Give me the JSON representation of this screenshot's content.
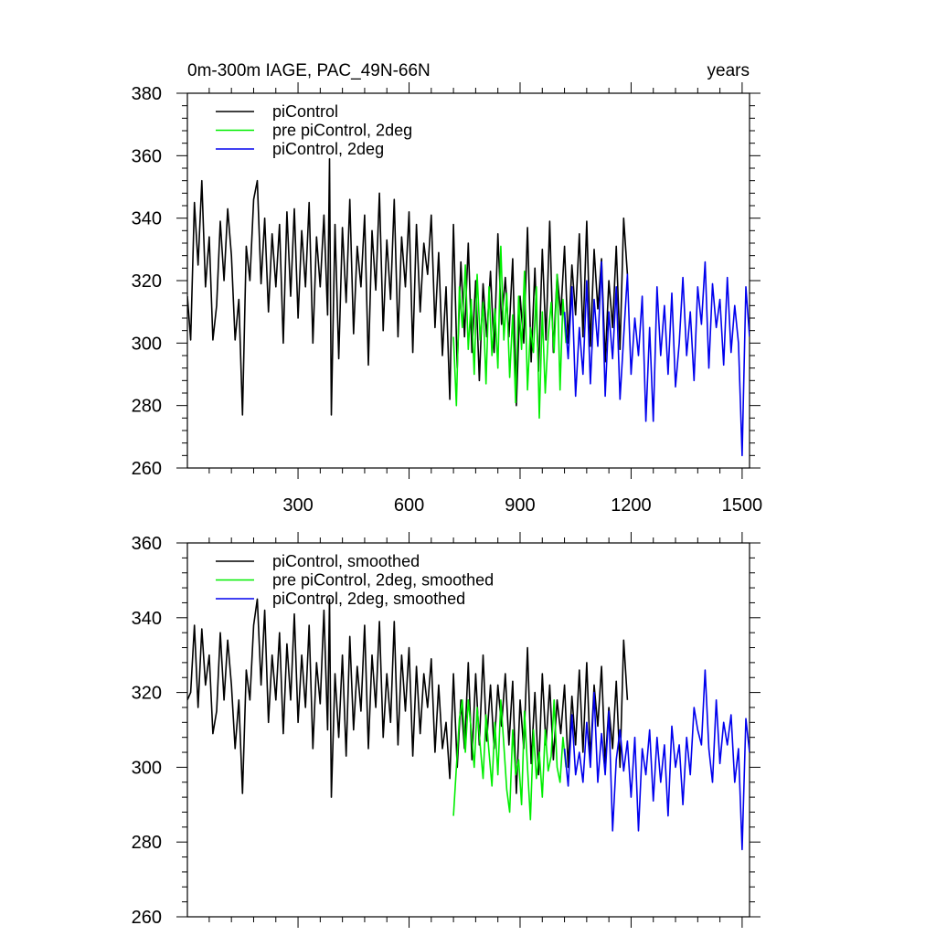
{
  "chart_data": [
    {
      "type": "line",
      "title": "0m-300m IAGE, PAC_49N-66N",
      "units": "years",
      "xlabel": "",
      "ylabel": "",
      "xlim": [
        1,
        1520
      ],
      "ylim": [
        260,
        380
      ],
      "xticks": [
        300,
        600,
        900,
        1200,
        1500
      ],
      "yticks": [
        260,
        280,
        300,
        320,
        340,
        360,
        380
      ],
      "legend_position": "top-left",
      "grid": false,
      "series": [
        {
          "name": "piControl",
          "color": "#000000",
          "x": [
            1,
            10,
            20,
            30,
            40,
            50,
            60,
            70,
            80,
            90,
            100,
            110,
            120,
            130,
            140,
            150,
            160,
            170,
            180,
            190,
            200,
            210,
            220,
            230,
            240,
            250,
            260,
            270,
            280,
            290,
            300,
            310,
            320,
            330,
            340,
            350,
            360,
            370,
            380,
            385,
            390,
            400,
            410,
            420,
            430,
            440,
            450,
            460,
            470,
            480,
            490,
            500,
            510,
            520,
            530,
            540,
            550,
            560,
            570,
            580,
            590,
            600,
            610,
            620,
            630,
            640,
            650,
            660,
            670,
            680,
            690,
            700,
            710,
            720,
            730,
            740,
            750,
            760,
            770,
            780,
            790,
            800,
            810,
            820,
            830,
            840,
            850,
            860,
            870,
            880,
            890,
            900,
            910,
            920,
            930,
            940,
            950,
            960,
            970,
            980,
            990,
            1000,
            1010,
            1020,
            1030,
            1040,
            1050,
            1060,
            1070,
            1080,
            1090,
            1100,
            1110,
            1120,
            1130,
            1140,
            1150,
            1160,
            1170,
            1180,
            1190
          ],
          "y": [
            315,
            301,
            345,
            325,
            352,
            318,
            334,
            301,
            312,
            339,
            320,
            343,
            328,
            301,
            314,
            277,
            331,
            320,
            346,
            352,
            319,
            340,
            310,
            335,
            318,
            338,
            300,
            342,
            315,
            343,
            308,
            336,
            318,
            345,
            300,
            334,
            318,
            341,
            309,
            359,
            277,
            338,
            295,
            337,
            313,
            346,
            303,
            331,
            318,
            341,
            293,
            336,
            317,
            348,
            304,
            333,
            314,
            346,
            302,
            334,
            318,
            342,
            297,
            338,
            310,
            332,
            322,
            341,
            305,
            329,
            296,
            318,
            282,
            338,
            292,
            326,
            302,
            332,
            297,
            320,
            288,
            319,
            302,
            323,
            297,
            335,
            306,
            321,
            302,
            327,
            280,
            315,
            300,
            337,
            294,
            324,
            291,
            330,
            301,
            339,
            297,
            322,
            309,
            331,
            300,
            325,
            309,
            335,
            302,
            339,
            299,
            330,
            311,
            327,
            294,
            320,
            305,
            331,
            298,
            340,
            322
          ]
        },
        {
          "name": "pre piControl, 2deg",
          "color": "#00ee00",
          "x": [
            720,
            728,
            736,
            744,
            752,
            760,
            768,
            776,
            784,
            792,
            800,
            808,
            816,
            824,
            832,
            840,
            848,
            856,
            864,
            872,
            880,
            888,
            896,
            904,
            912,
            920,
            928,
            936,
            944,
            952,
            960,
            968,
            976,
            984,
            992,
            1000,
            1008,
            1016,
            1024
          ],
          "y": [
            302,
            280,
            318,
            305,
            325,
            298,
            314,
            290,
            322,
            301,
            313,
            287,
            318,
            296,
            311,
            292,
            331,
            301,
            316,
            289,
            309,
            281,
            315,
            298,
            323,
            285,
            305,
            297,
            318,
            276,
            310,
            284,
            302,
            313,
            297,
            322,
            285,
            314,
            300
          ]
        },
        {
          "name": "piControl, 2deg",
          "color": "#0000ee",
          "x": [
            1020,
            1030,
            1040,
            1050,
            1060,
            1070,
            1080,
            1090,
            1100,
            1110,
            1120,
            1130,
            1140,
            1150,
            1160,
            1170,
            1180,
            1190,
            1200,
            1210,
            1220,
            1230,
            1240,
            1250,
            1260,
            1270,
            1280,
            1290,
            1300,
            1310,
            1320,
            1330,
            1340,
            1350,
            1360,
            1370,
            1380,
            1390,
            1400,
            1410,
            1420,
            1430,
            1440,
            1450,
            1460,
            1470,
            1480,
            1490,
            1500,
            1510,
            1520
          ],
          "y": [
            310,
            295,
            318,
            283,
            305,
            290,
            320,
            287,
            314,
            299,
            326,
            283,
            310,
            295,
            318,
            282,
            302,
            322,
            290,
            308,
            296,
            315,
            275,
            305,
            275,
            318,
            296,
            312,
            290,
            316,
            286,
            300,
            321,
            296,
            310,
            288,
            318,
            306,
            326,
            292,
            319,
            305,
            314,
            293,
            321,
            297,
            312,
            300,
            264,
            318,
            302
          ]
        }
      ]
    },
    {
      "type": "line",
      "title": "",
      "xlabel": "",
      "ylabel": "",
      "xlim": [
        1,
        1520
      ],
      "ylim": [
        260,
        360
      ],
      "xticks": [
        300,
        600,
        900,
        1200,
        1500
      ],
      "yticks": [
        260,
        280,
        300,
        320,
        340,
        360
      ],
      "legend_position": "top-left",
      "grid": false,
      "series": [
        {
          "name": "piControl, smoothed",
          "color": "#000000",
          "x": [
            1,
            10,
            20,
            30,
            40,
            50,
            60,
            70,
            80,
            90,
            100,
            110,
            120,
            130,
            140,
            150,
            160,
            170,
            180,
            190,
            200,
            210,
            220,
            230,
            240,
            250,
            260,
            270,
            280,
            290,
            300,
            310,
            320,
            330,
            340,
            350,
            360,
            370,
            380,
            385,
            390,
            400,
            410,
            420,
            430,
            440,
            450,
            460,
            470,
            480,
            490,
            500,
            510,
            520,
            530,
            540,
            550,
            560,
            570,
            580,
            590,
            600,
            610,
            620,
            630,
            640,
            650,
            660,
            670,
            680,
            690,
            700,
            710,
            720,
            730,
            740,
            750,
            760,
            770,
            780,
            790,
            800,
            810,
            820,
            830,
            840,
            850,
            860,
            870,
            880,
            890,
            900,
            910,
            920,
            930,
            940,
            950,
            960,
            970,
            980,
            990,
            1000,
            1010,
            1020,
            1030,
            1040,
            1050,
            1060,
            1070,
            1080,
            1090,
            1100,
            1110,
            1120,
            1130,
            1140,
            1150,
            1160,
            1170,
            1180,
            1190
          ],
          "y": [
            318,
            320,
            338,
            316,
            337,
            322,
            330,
            309,
            315,
            336,
            318,
            334,
            322,
            305,
            318,
            293,
            326,
            318,
            338,
            345,
            322,
            342,
            312,
            330,
            318,
            336,
            309,
            333,
            318,
            341,
            312,
            330,
            316,
            338,
            305,
            328,
            317,
            342,
            310,
            345,
            292,
            325,
            308,
            330,
            303,
            335,
            310,
            327,
            315,
            338,
            305,
            330,
            316,
            339,
            308,
            325,
            312,
            339,
            306,
            330,
            315,
            332,
            303,
            327,
            309,
            325,
            316,
            329,
            304,
            322,
            305,
            312,
            297,
            325,
            300,
            318,
            305,
            328,
            302,
            325,
            306,
            330,
            307,
            322,
            305,
            322,
            311,
            325,
            306,
            323,
            293,
            318,
            305,
            332,
            301,
            320,
            298,
            325,
            306,
            322,
            302,
            318,
            309,
            322,
            300,
            319,
            306,
            326,
            304,
            328,
            302,
            322,
            311,
            327,
            301,
            316,
            305,
            323,
            300,
            334,
            318
          ]
        },
        {
          "name": "pre piControl, 2deg, smoothed",
          "color": "#00ee00",
          "x": [
            720,
            728,
            736,
            744,
            752,
            760,
            768,
            776,
            784,
            792,
            800,
            808,
            816,
            824,
            832,
            840,
            848,
            856,
            864,
            872,
            880,
            888,
            896,
            904,
            912,
            920,
            928,
            936,
            944,
            952,
            960,
            968,
            976,
            984,
            992,
            1000,
            1008,
            1016,
            1024
          ],
          "y": [
            287,
            300,
            313,
            318,
            304,
            318,
            310,
            300,
            316,
            306,
            297,
            314,
            304,
            295,
            312,
            298,
            318,
            306,
            294,
            288,
            310,
            298,
            302,
            290,
            315,
            300,
            286,
            310,
            297,
            304,
            292,
            310,
            299,
            303,
            318,
            300,
            296,
            308,
            300
          ]
        },
        {
          "name": "piControl, 2deg, smoothed",
          "color": "#0000ee",
          "x": [
            1020,
            1030,
            1040,
            1050,
            1060,
            1070,
            1080,
            1090,
            1100,
            1110,
            1120,
            1130,
            1140,
            1150,
            1160,
            1170,
            1180,
            1190,
            1200,
            1210,
            1220,
            1230,
            1240,
            1250,
            1260,
            1270,
            1280,
            1290,
            1300,
            1310,
            1320,
            1330,
            1340,
            1350,
            1360,
            1370,
            1380,
            1390,
            1400,
            1410,
            1420,
            1430,
            1440,
            1450,
            1460,
            1470,
            1480,
            1490,
            1500,
            1510,
            1520
          ],
          "y": [
            305,
            295,
            314,
            298,
            304,
            296,
            312,
            300,
            320,
            296,
            309,
            298,
            315,
            283,
            302,
            310,
            299,
            307,
            292,
            308,
            283,
            305,
            298,
            310,
            291,
            308,
            296,
            306,
            287,
            311,
            300,
            306,
            290,
            308,
            298,
            316,
            310,
            306,
            326,
            305,
            296,
            318,
            301,
            312,
            306,
            314,
            296,
            305,
            278,
            313,
            304
          ]
        }
      ]
    }
  ]
}
